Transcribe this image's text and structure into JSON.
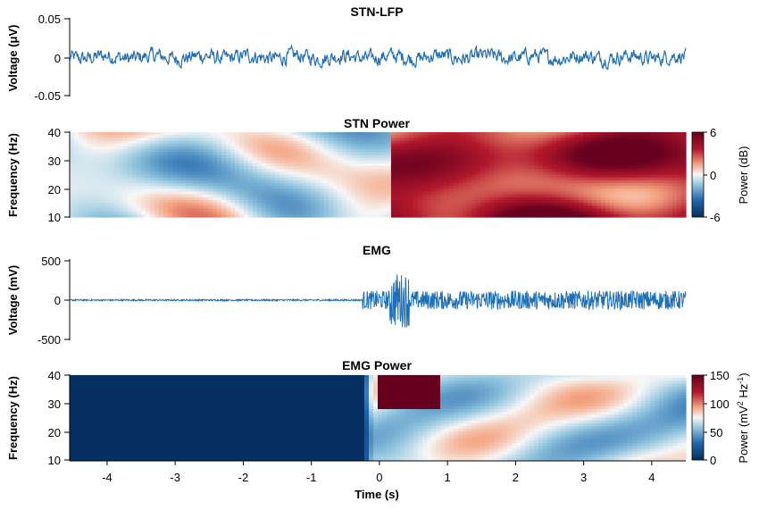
{
  "colors": {
    "trace": "#1f6fb5",
    "cmap_low": "#053061",
    "cmap_mid": "#f7f7f7",
    "cmap_high": "#67001f"
  },
  "chart_data": [
    {
      "type": "line",
      "title": "STN-LFP",
      "xlabel": "",
      "ylabel": "Voltage (μV)",
      "xlim": [
        -4.55,
        4.5
      ],
      "ylim": [
        -0.05,
        0.05
      ],
      "yticks": [
        "0.05",
        "0",
        "-0.05"
      ],
      "series": [
        {
          "amplitude": 0.012,
          "description_values": "continuous LFP trace fluctuating around 0 within about ±0.02"
        }
      ]
    },
    {
      "type": "heatmap",
      "title": "STN Power",
      "ylabel": "Frequency (Hz)",
      "xlim": [
        -4.55,
        4.5
      ],
      "ylim": [
        10,
        40
      ],
      "yticks": [
        "40",
        "30",
        "20",
        "10"
      ],
      "colorbar": {
        "label": "Power (dB)",
        "range": [
          -6,
          6
        ],
        "ticks": [
          "6",
          "0",
          "-6"
        ]
      },
      "colormap": "diverging blue-white-red"
    },
    {
      "type": "line",
      "title": "EMG",
      "ylabel": "Voltage (mV)",
      "xlim": [
        -4.55,
        4.5
      ],
      "ylim": [
        -500,
        500
      ],
      "yticks": [
        "500",
        "0",
        "-500"
      ],
      "onset_time": -0.25,
      "series": [
        {
          "pre_onset_amplitude": 10,
          "post_onset_amplitude": 120,
          "peak_time": 0.3,
          "peak_value": 350
        }
      ]
    },
    {
      "type": "heatmap",
      "title": "EMG Power",
      "ylabel": "Frequency (Hz)",
      "xlabel": "Time (s)",
      "xlim": [
        -4.55,
        4.5
      ],
      "ylim": [
        10,
        40
      ],
      "yticks": [
        "40",
        "30",
        "20",
        "10"
      ],
      "xticks": [
        "-4",
        "-3",
        "-2",
        "-1",
        "0",
        "1",
        "2",
        "3",
        "4"
      ],
      "colorbar": {
        "label_main": "Power (mV",
        "label_sup1": "2",
        "label_mid": " Hz",
        "label_sup2": "-1",
        "label_end": ")",
        "range": [
          0,
          150
        ],
        "ticks": [
          "150",
          "100",
          "50",
          "0"
        ]
      },
      "colormap": "diverging blue-white-red",
      "onset_time": -0.25,
      "burst_time": [
        0,
        0.9
      ],
      "burst_freq": [
        28,
        40
      ]
    }
  ]
}
